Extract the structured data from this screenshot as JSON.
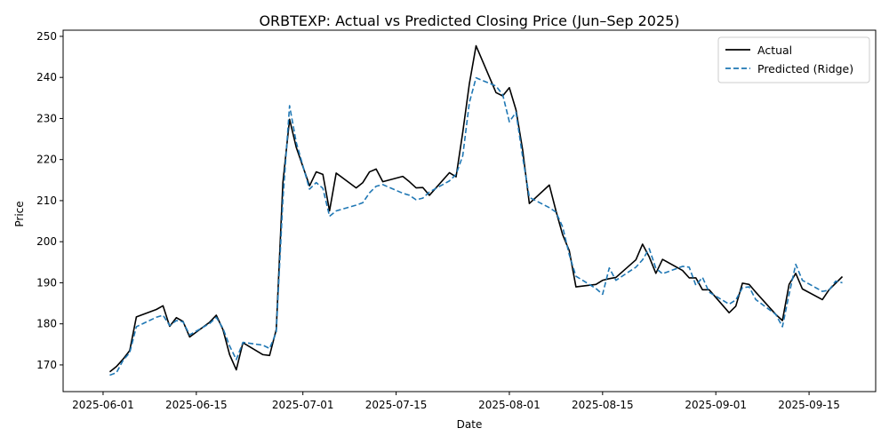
{
  "chart_data": {
    "type": "line",
    "title": "ORBTEXP: Actual vs Predicted Closing Price (Jun–Sep 2025)",
    "xlabel": "Date",
    "ylabel": "Price",
    "xlim": [
      "2025-05-26",
      "2025-09-25"
    ],
    "ylim": [
      163.5,
      251.5
    ],
    "x_ticks": [
      "2025-06-01",
      "2025-06-15",
      "2025-07-01",
      "2025-07-15",
      "2025-08-01",
      "2025-08-15",
      "2025-09-01",
      "2025-09-15"
    ],
    "y_ticks": [
      170,
      180,
      190,
      200,
      210,
      220,
      230,
      240,
      250
    ],
    "grid": false,
    "legend_position": "top-right",
    "series": [
      {
        "name": "Actual",
        "color": "#000000",
        "style": "solid",
        "points": [
          [
            "2025-06-02",
            168.3
          ],
          [
            "2025-06-03",
            169.6
          ],
          [
            "2025-06-04",
            171.4
          ],
          [
            "2025-06-05",
            173.5
          ],
          [
            "2025-06-06",
            181.7
          ],
          [
            "2025-06-09",
            183.5
          ],
          [
            "2025-06-10",
            184.4
          ],
          [
            "2025-06-11",
            179.4
          ],
          [
            "2025-06-12",
            181.5
          ],
          [
            "2025-06-13",
            180.6
          ],
          [
            "2025-06-14",
            176.8
          ],
          [
            "2025-06-17",
            180.4
          ],
          [
            "2025-06-18",
            182.1
          ],
          [
            "2025-06-19",
            178.6
          ],
          [
            "2025-06-20",
            172.5
          ],
          [
            "2025-06-21",
            168.8
          ],
          [
            "2025-06-22",
            175.4
          ],
          [
            "2025-06-25",
            172.5
          ],
          [
            "2025-06-26",
            172.3
          ],
          [
            "2025-06-27",
            178.6
          ],
          [
            "2025-06-28",
            214.4
          ],
          [
            "2025-06-29",
            229.8
          ],
          [
            "2025-06-30",
            223.0
          ],
          [
            "2025-07-02",
            213.6
          ],
          [
            "2025-07-03",
            217.0
          ],
          [
            "2025-07-04",
            216.4
          ],
          [
            "2025-07-05",
            207.5
          ],
          [
            "2025-07-06",
            216.7
          ],
          [
            "2025-07-09",
            213.1
          ],
          [
            "2025-07-10",
            214.4
          ],
          [
            "2025-07-11",
            217.0
          ],
          [
            "2025-07-12",
            217.7
          ],
          [
            "2025-07-13",
            214.6
          ],
          [
            "2025-07-16",
            215.9
          ],
          [
            "2025-07-17",
            214.6
          ],
          [
            "2025-07-18",
            213.1
          ],
          [
            "2025-07-19",
            213.2
          ],
          [
            "2025-07-20",
            211.3
          ],
          [
            "2025-07-23",
            216.8
          ],
          [
            "2025-07-24",
            215.8
          ],
          [
            "2025-07-25",
            226.6
          ],
          [
            "2025-07-26",
            238.5
          ],
          [
            "2025-07-27",
            247.7
          ],
          [
            "2025-07-30",
            236.3
          ],
          [
            "2025-07-31",
            235.5
          ],
          [
            "2025-08-01",
            237.5
          ],
          [
            "2025-08-02",
            232.1
          ],
          [
            "2025-08-03",
            222.3
          ],
          [
            "2025-08-04",
            209.3
          ],
          [
            "2025-08-07",
            213.8
          ],
          [
            "2025-08-08",
            207.5
          ],
          [
            "2025-08-09",
            201.7
          ],
          [
            "2025-08-10",
            197.8
          ],
          [
            "2025-08-11",
            189.0
          ],
          [
            "2025-08-14",
            189.6
          ],
          [
            "2025-08-15",
            190.6
          ],
          [
            "2025-08-16",
            191.0
          ],
          [
            "2025-08-17",
            191.3
          ],
          [
            "2025-08-20",
            195.6
          ],
          [
            "2025-08-21",
            199.4
          ],
          [
            "2025-08-22",
            196.3
          ],
          [
            "2025-08-23",
            192.3
          ],
          [
            "2025-08-24",
            195.7
          ],
          [
            "2025-08-27",
            193.0
          ],
          [
            "2025-08-28",
            191.2
          ],
          [
            "2025-08-29",
            191.2
          ],
          [
            "2025-08-30",
            188.3
          ],
          [
            "2025-08-31",
            188.3
          ],
          [
            "2025-09-03",
            182.7
          ],
          [
            "2025-09-04",
            184.3
          ],
          [
            "2025-09-05",
            189.9
          ],
          [
            "2025-09-06",
            189.6
          ],
          [
            "2025-09-07",
            187.7
          ],
          [
            "2025-09-10",
            182.3
          ],
          [
            "2025-09-11",
            180.8
          ],
          [
            "2025-09-12",
            189.6
          ],
          [
            "2025-09-13",
            192.3
          ],
          [
            "2025-09-14",
            188.5
          ],
          [
            "2025-09-17",
            185.9
          ],
          [
            "2025-09-18",
            188.3
          ],
          [
            "2025-09-19",
            189.9
          ],
          [
            "2025-09-20",
            191.5
          ]
        ]
      },
      {
        "name": "Predicted (Ridge)",
        "color": "#1f77b4",
        "style": "dashed",
        "points": [
          [
            "2025-06-02",
            167.5
          ],
          [
            "2025-06-03",
            168.1
          ],
          [
            "2025-06-04",
            171.1
          ],
          [
            "2025-06-05",
            173.0
          ],
          [
            "2025-06-06",
            179.3
          ],
          [
            "2025-06-09",
            181.6
          ],
          [
            "2025-06-10",
            182.1
          ],
          [
            "2025-06-11",
            179.6
          ],
          [
            "2025-06-12",
            180.8
          ],
          [
            "2025-06-13",
            180.5
          ],
          [
            "2025-06-14",
            177.3
          ],
          [
            "2025-06-17",
            180.1
          ],
          [
            "2025-06-18",
            181.6
          ],
          [
            "2025-06-19",
            178.9
          ],
          [
            "2025-06-20",
            174.6
          ],
          [
            "2025-06-21",
            171.3
          ],
          [
            "2025-06-22",
            175.5
          ],
          [
            "2025-06-25",
            174.8
          ],
          [
            "2025-06-26",
            174.0
          ],
          [
            "2025-06-27",
            177.9
          ],
          [
            "2025-06-28",
            210.3
          ],
          [
            "2025-06-29",
            233.1
          ],
          [
            "2025-06-30",
            224.2
          ],
          [
            "2025-07-02",
            212.8
          ],
          [
            "2025-07-03",
            214.4
          ],
          [
            "2025-07-04",
            213.0
          ],
          [
            "2025-07-05",
            206.2
          ],
          [
            "2025-07-06",
            207.5
          ],
          [
            "2025-07-09",
            208.9
          ],
          [
            "2025-07-10",
            209.5
          ],
          [
            "2025-07-11",
            211.9
          ],
          [
            "2025-07-12",
            213.5
          ],
          [
            "2025-07-13",
            213.9
          ],
          [
            "2025-07-16",
            211.8
          ],
          [
            "2025-07-17",
            211.3
          ],
          [
            "2025-07-18",
            210.2
          ],
          [
            "2025-07-19",
            210.6
          ],
          [
            "2025-07-20",
            212.1
          ],
          [
            "2025-07-23",
            214.8
          ],
          [
            "2025-07-24",
            216.4
          ],
          [
            "2025-07-25",
            220.9
          ],
          [
            "2025-07-26",
            233.9
          ],
          [
            "2025-07-27",
            239.9
          ],
          [
            "2025-07-30",
            237.9
          ],
          [
            "2025-07-31",
            235.8
          ],
          [
            "2025-08-01",
            229.2
          ],
          [
            "2025-08-02",
            231.5
          ],
          [
            "2025-08-03",
            220.6
          ],
          [
            "2025-08-04",
            210.8
          ],
          [
            "2025-08-07",
            208.3
          ],
          [
            "2025-08-08",
            207.2
          ],
          [
            "2025-08-09",
            203.6
          ],
          [
            "2025-08-10",
            196.8
          ],
          [
            "2025-08-11",
            191.6
          ],
          [
            "2025-08-14",
            188.6
          ],
          [
            "2025-08-15",
            187.2
          ],
          [
            "2025-08-16",
            193.6
          ],
          [
            "2025-08-17",
            190.6
          ],
          [
            "2025-08-20",
            193.8
          ],
          [
            "2025-08-21",
            195.6
          ],
          [
            "2025-08-22",
            198.3
          ],
          [
            "2025-08-23",
            193.5
          ],
          [
            "2025-08-24",
            192.2
          ],
          [
            "2025-08-27",
            194.0
          ],
          [
            "2025-08-28",
            193.8
          ],
          [
            "2025-08-29",
            189.4
          ],
          [
            "2025-08-30",
            191.3
          ],
          [
            "2025-08-31",
            187.7
          ],
          [
            "2025-09-03",
            184.8
          ],
          [
            "2025-09-04",
            185.8
          ],
          [
            "2025-09-05",
            188.8
          ],
          [
            "2025-09-06",
            189.0
          ],
          [
            "2025-09-07",
            185.9
          ],
          [
            "2025-09-10",
            182.3
          ],
          [
            "2025-09-11",
            179.3
          ],
          [
            "2025-09-12",
            187.2
          ],
          [
            "2025-09-13",
            194.5
          ],
          [
            "2025-09-14",
            190.6
          ],
          [
            "2025-09-17",
            187.9
          ],
          [
            "2025-09-18",
            188.2
          ],
          [
            "2025-09-19",
            190.4
          ],
          [
            "2025-09-20",
            190.0
          ]
        ]
      }
    ]
  }
}
